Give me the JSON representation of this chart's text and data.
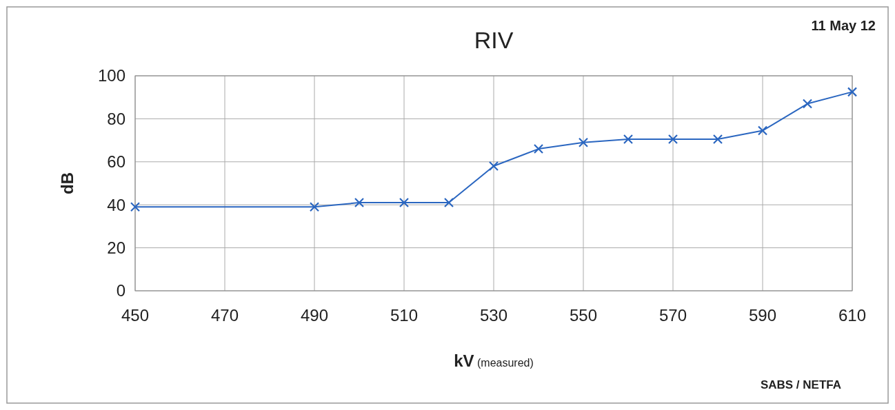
{
  "chart_data": {
    "type": "line",
    "title": "RIV",
    "xlabel": "kV (measured)",
    "ylabel": "dB",
    "annotations": [
      "11 May 12",
      "SABS / NETFA"
    ],
    "x": [
      450,
      490,
      500,
      510,
      520,
      530,
      540,
      550,
      560,
      570,
      580,
      590,
      600,
      610
    ],
    "series": [
      {
        "color": "#2a66c0",
        "values": [
          39,
          39,
          41,
          41,
          41,
          58,
          66,
          69,
          70.5,
          70.5,
          70.5,
          74.5,
          87,
          92.5
        ]
      }
    ],
    "xlim": [
      450,
      610
    ],
    "xticks": [
      450,
      470,
      490,
      510,
      530,
      550,
      570,
      590,
      610
    ],
    "ylim": [
      0,
      100
    ],
    "yticks": [
      0,
      20,
      40,
      60,
      80,
      100
    ],
    "grid": true,
    "marker": "cross",
    "line_style": "solid"
  }
}
